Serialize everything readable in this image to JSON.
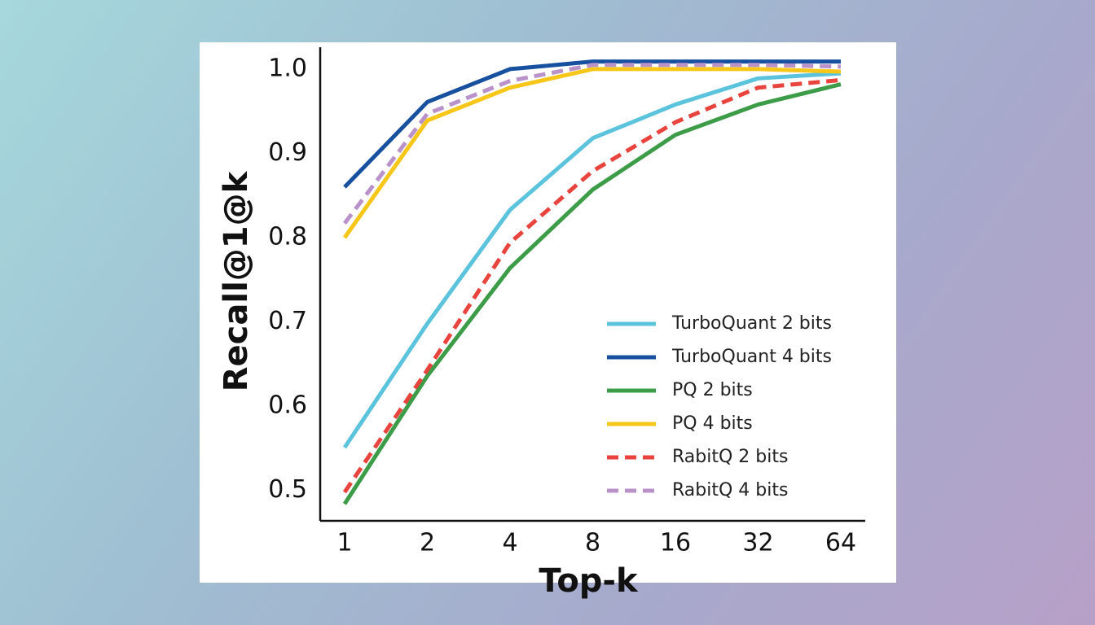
{
  "chart_data": {
    "type": "line",
    "x_label": "Top-k",
    "y_label": "Recall@1@k",
    "categories": [
      "1",
      "2",
      "4",
      "8",
      "16",
      "32",
      "64"
    ],
    "series": [
      {
        "name": "TurboQuant 2 bits",
        "color": "#5bc3dc",
        "dashed": false,
        "values": [
          0.551,
          0.698,
          0.833,
          0.918,
          0.958,
          0.989,
          0.995
        ]
      },
      {
        "name": "TurboQuant 4 bits",
        "color": "#17509e",
        "dashed": false,
        "values": [
          0.86,
          0.961,
          1.0,
          1.009,
          1.009,
          1.009,
          1.009
        ]
      },
      {
        "name": "PQ 2 bits",
        "color": "#3c9c48",
        "dashed": false,
        "values": [
          0.484,
          0.636,
          0.764,
          0.857,
          0.922,
          0.958,
          0.982
        ]
      },
      {
        "name": "PQ 4 bits",
        "color": "#f6c619",
        "dashed": false,
        "values": [
          0.8,
          0.939,
          0.978,
          1.0,
          1.0,
          1.0,
          0.997
        ]
      },
      {
        "name": "RabitQ 2 bits",
        "color": "#e8433c",
        "dashed": true,
        "values": [
          0.498,
          0.643,
          0.794,
          0.879,
          0.937,
          0.978,
          0.987
        ]
      },
      {
        "name": "RabitQ 4 bits",
        "color": "#b892c9",
        "dashed": true,
        "values": [
          0.817,
          0.947,
          0.986,
          1.005,
          1.005,
          1.005,
          1.003
        ]
      }
    ],
    "ylim": [
      0.464,
      1.026
    ],
    "yticks": [
      0.5,
      0.6,
      0.7,
      0.8,
      0.9,
      {
        "value": 1,
        "label": "1.0"
      }
    ],
    "grid": false,
    "legend": "lower right"
  }
}
